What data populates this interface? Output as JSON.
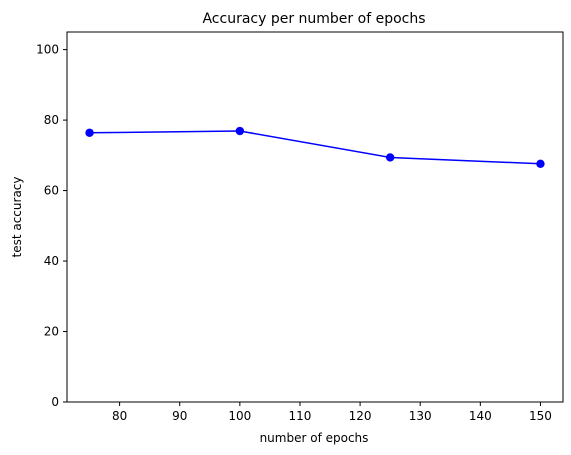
{
  "chart_data": {
    "type": "line",
    "title": "Accuracy per number of epochs",
    "xlabel": "number of epochs",
    "ylabel": "test accuracy",
    "xlim": [
      71.25,
      153.75
    ],
    "ylim": [
      0,
      105
    ],
    "x_ticks": [
      80,
      90,
      100,
      110,
      120,
      130,
      140,
      150
    ],
    "y_ticks": [
      0,
      20,
      40,
      60,
      80,
      100
    ],
    "grid": false,
    "legend": "none",
    "series": [
      {
        "x": [
          75,
          100,
          125,
          150
        ],
        "values": [
          76.4,
          76.9,
          69.4,
          67.6
        ],
        "color": "#0000ff",
        "marker": "circle"
      }
    ]
  }
}
